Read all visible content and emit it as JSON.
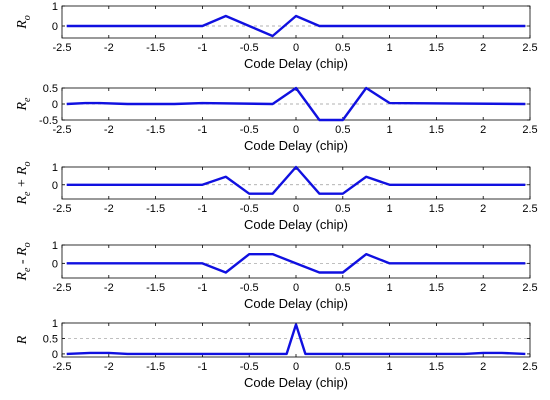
{
  "colors": {
    "series": "#1010e0",
    "reference_line": "#999999",
    "axes": "#000000"
  },
  "chart_data": [
    {
      "type": "line",
      "xlabel": "Code Delay (chip)",
      "ylabel_main": "R",
      "ylabel_sub": "o",
      "xlim": [
        -2.5,
        2.5
      ],
      "ylim": [
        -0.6,
        1.0
      ],
      "xticks": [
        "-2.5",
        "-2",
        "-1.5",
        "-1",
        "-0.5",
        "0",
        "0.5",
        "1",
        "1.5",
        "2",
        "2.5"
      ],
      "yticks": [
        "0",
        "1"
      ],
      "ytick_values": [
        0,
        1
      ],
      "reference_lines": [
        0
      ],
      "grid": false,
      "series": [
        {
          "x": [
            -2.45,
            -1.0,
            -0.75,
            -0.5,
            -0.25,
            0.0,
            0.25,
            2.45
          ],
          "y": [
            0,
            0,
            0.5,
            0.0,
            -0.5,
            0.5,
            0,
            0
          ]
        }
      ]
    },
    {
      "type": "line",
      "xlabel": "Code Delay (chip)",
      "ylabel_main": "R",
      "ylabel_sub": "e",
      "xlim": [
        -2.5,
        2.5
      ],
      "ylim": [
        -0.5,
        0.5
      ],
      "xticks": [
        "-2.5",
        "-2",
        "-1.5",
        "-1",
        "-0.5",
        "0",
        "0.5",
        "1",
        "1.5",
        "2",
        "2.5"
      ],
      "yticks": [
        "-0.5",
        "0",
        "0.5"
      ],
      "ytick_values": [
        -0.5,
        0,
        0.5
      ],
      "reference_lines": [
        0
      ],
      "grid": false,
      "series": [
        {
          "x": [
            -2.45,
            -2.25,
            -2.1,
            -1.8,
            -1.3,
            -1.0,
            -0.25,
            0.0,
            0.25,
            0.5,
            0.75,
            1.0,
            2.45
          ],
          "y": [
            0,
            0.03,
            0.03,
            0,
            0,
            0.03,
            0,
            0.5,
            -0.5,
            -0.5,
            0.5,
            0.03,
            0
          ]
        }
      ]
    },
    {
      "type": "line",
      "xlabel": "Code Delay (chip)",
      "ylabel_main": "R",
      "ylabel_sub": "e",
      "ylabel_rest": " + R",
      "ylabel_sub2": "o",
      "xlim": [
        -2.5,
        2.5
      ],
      "ylim": [
        -0.8,
        1.0
      ],
      "xticks": [
        "-2.5",
        "-2",
        "-1.5",
        "-1",
        "-0.5",
        "0",
        "0.5",
        "1",
        "1.5",
        "2",
        "2.5"
      ],
      "yticks": [
        "0",
        "1"
      ],
      "ytick_values": [
        0,
        1
      ],
      "reference_lines": [
        0
      ],
      "grid": false,
      "series": [
        {
          "x": [
            -2.45,
            -1.0,
            -0.75,
            -0.5,
            -0.25,
            0.0,
            0.25,
            0.5,
            0.75,
            1.0,
            2.45
          ],
          "y": [
            0,
            0,
            0.45,
            -0.5,
            -0.5,
            1.0,
            -0.5,
            -0.5,
            0.45,
            0,
            0
          ]
        }
      ]
    },
    {
      "type": "line",
      "xlabel": "Code Delay (chip)",
      "ylabel_main": "R",
      "ylabel_sub": "e",
      "ylabel_rest": " - R",
      "ylabel_sub2": "o",
      "xlim": [
        -2.5,
        2.5
      ],
      "ylim": [
        -0.8,
        1.0
      ],
      "xticks": [
        "-2.5",
        "-2",
        "-1.5",
        "-1",
        "-0.5",
        "0",
        "0.5",
        "1",
        "1.5",
        "2",
        "2.5"
      ],
      "yticks": [
        "0",
        "1"
      ],
      "ytick_values": [
        0,
        1
      ],
      "reference_lines": [
        0
      ],
      "grid": false,
      "series": [
        {
          "x": [
            -2.45,
            -1.0,
            -0.75,
            -0.5,
            -0.25,
            0.0,
            0.25,
            0.5,
            0.75,
            1.0,
            2.45
          ],
          "y": [
            0,
            0,
            -0.5,
            0.5,
            0.5,
            0.0,
            -0.5,
            -0.5,
            0.5,
            0,
            0
          ]
        }
      ]
    },
    {
      "type": "line",
      "xlabel": "Code Delay (chip)",
      "ylabel_main": "R",
      "xlim": [
        -2.5,
        2.5
      ],
      "ylim": [
        -0.1,
        1.0
      ],
      "xticks": [
        "-2.5",
        "-2",
        "-1.5",
        "-1",
        "-0.5",
        "0",
        "0.5",
        "1",
        "1.5",
        "2",
        "2.5"
      ],
      "yticks": [
        "0",
        "0.5",
        "1"
      ],
      "ytick_values": [
        0,
        0.5,
        1
      ],
      "reference_lines": [
        0.5
      ],
      "grid": false,
      "series": [
        {
          "x": [
            -2.45,
            -2.2,
            -2.0,
            -1.8,
            -0.1,
            0.0,
            0.1,
            1.8,
            2.0,
            2.2,
            2.45
          ],
          "y": [
            0,
            0.03,
            0.03,
            0,
            0,
            0.95,
            0,
            0,
            0.03,
            0.03,
            0
          ]
        }
      ]
    }
  ]
}
